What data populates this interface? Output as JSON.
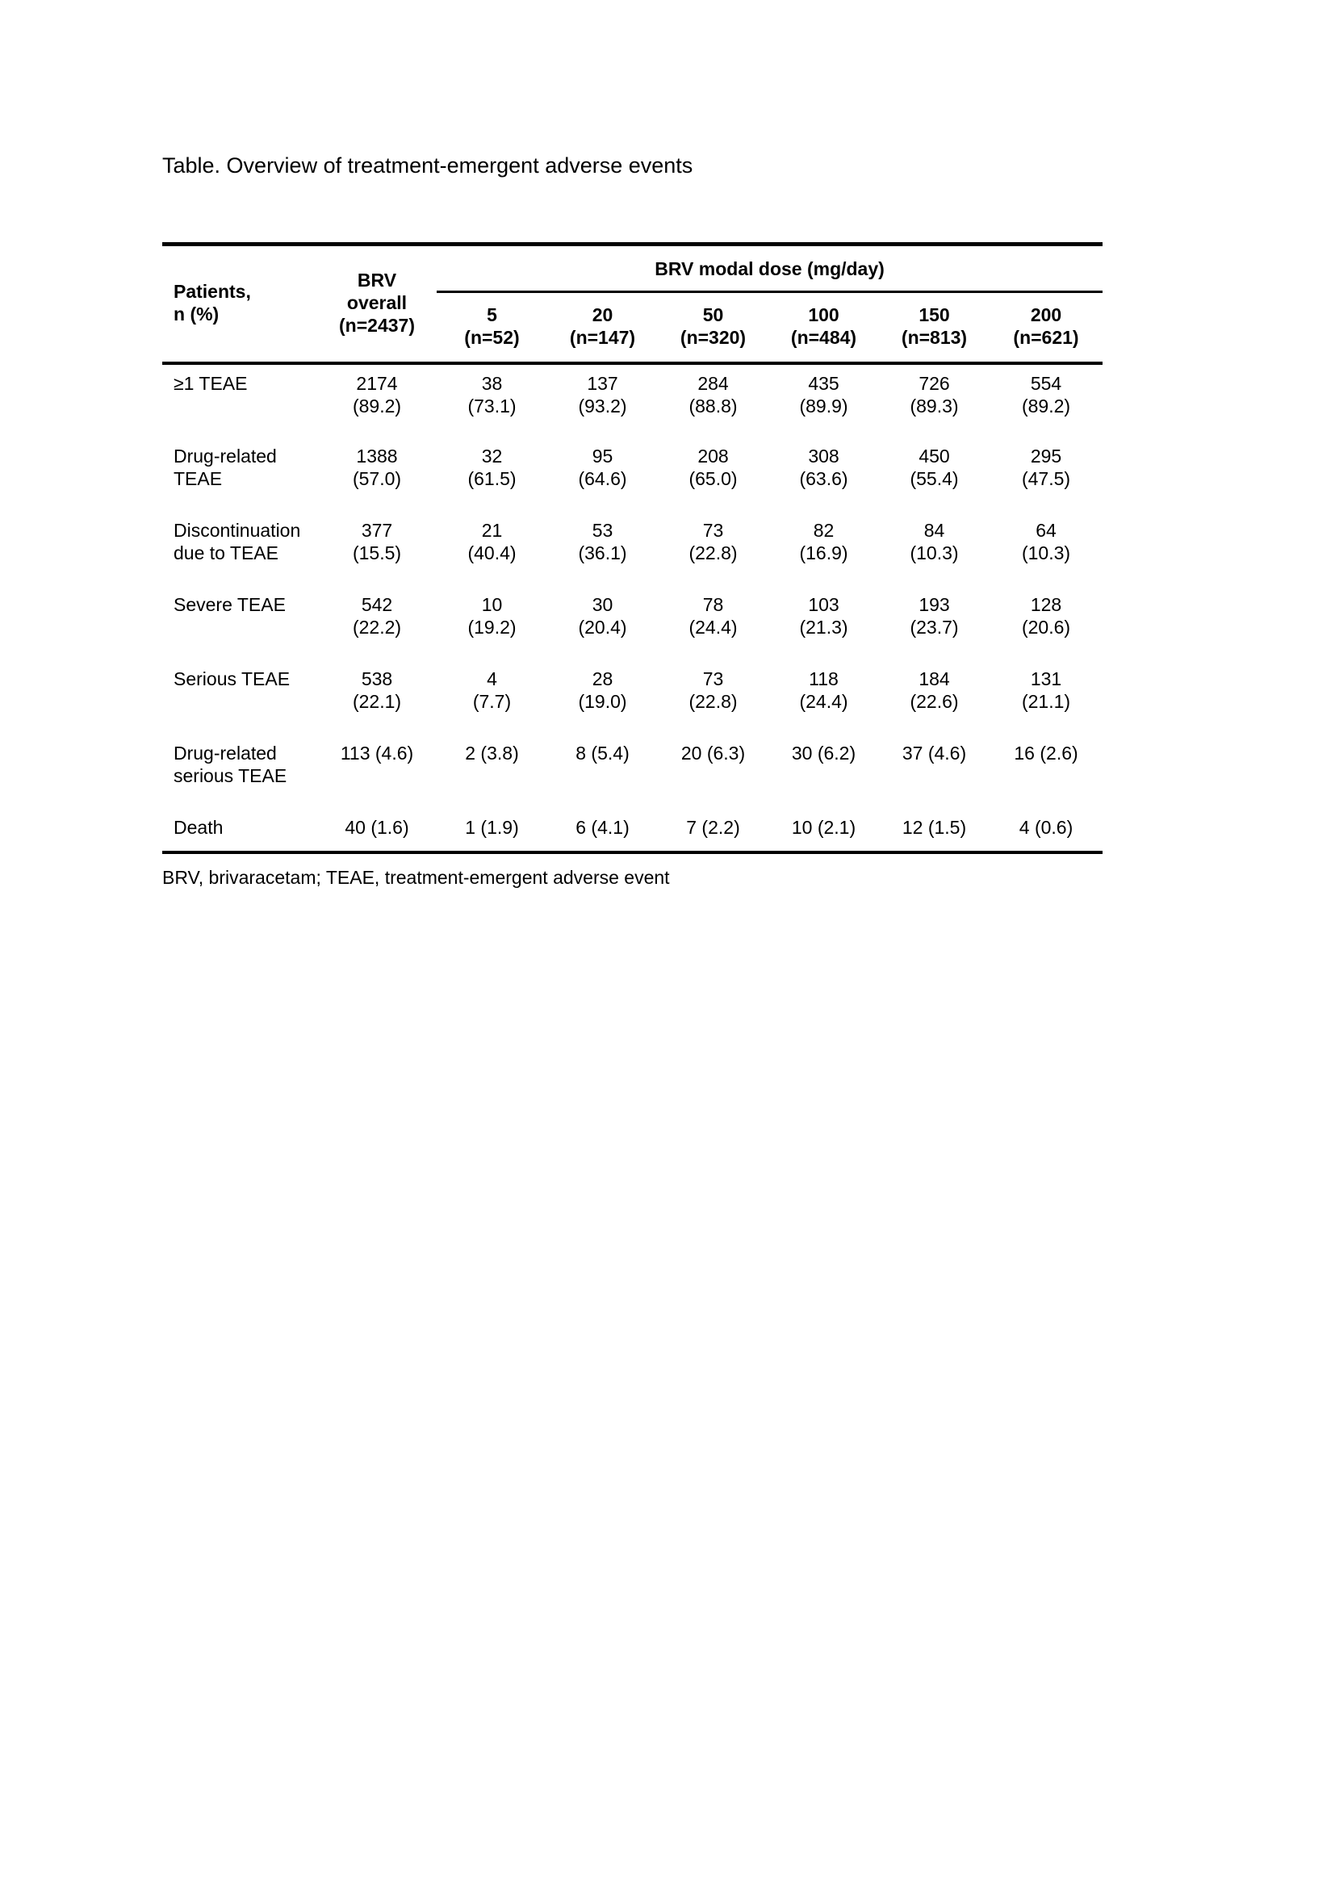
{
  "page": {
    "title": "Table. Overview of treatment-emergent adverse events",
    "footnote": "BRV, brivaracetam; TEAE, treatment-emergent adverse event"
  },
  "table": {
    "patients_header": [
      "Patients,",
      "n (%)"
    ],
    "overall_header": [
      "BRV",
      "overall",
      "(n=2437)"
    ],
    "dose_group_header": "BRV modal dose (mg/day)",
    "dose_columns": [
      {
        "dose": "5",
        "n": "(n=52)"
      },
      {
        "dose": "20",
        "n": "(n=147)"
      },
      {
        "dose": "50",
        "n": "(n=320)"
      },
      {
        "dose": "100",
        "n": "(n=484)"
      },
      {
        "dose": "150",
        "n": "(n=813)"
      },
      {
        "dose": "200",
        "n": "(n=621)"
      }
    ],
    "rows": [
      {
        "label": [
          "≥1 TEAE"
        ],
        "cells": [
          [
            "2174",
            "(89.2)"
          ],
          [
            "38",
            "(73.1)"
          ],
          [
            "137",
            "(93.2)"
          ],
          [
            "284",
            "(88.8)"
          ],
          [
            "435",
            "(89.9)"
          ],
          [
            "726",
            "(89.3)"
          ],
          [
            "554",
            "(89.2)"
          ]
        ]
      },
      {
        "label": [
          "Drug-related",
          "TEAE"
        ],
        "cells": [
          [
            "1388",
            "(57.0)"
          ],
          [
            "32",
            "(61.5)"
          ],
          [
            "95",
            "(64.6)"
          ],
          [
            "208",
            "(65.0)"
          ],
          [
            "308",
            "(63.6)"
          ],
          [
            "450",
            "(55.4)"
          ],
          [
            "295",
            "(47.5)"
          ]
        ]
      },
      {
        "label": [
          "Discontinuation",
          "due to TEAE"
        ],
        "cells": [
          [
            "377",
            "(15.5)"
          ],
          [
            "21",
            "(40.4)"
          ],
          [
            "53",
            "(36.1)"
          ],
          [
            "73",
            "(22.8)"
          ],
          [
            "82",
            "(16.9)"
          ],
          [
            "84",
            "(10.3)"
          ],
          [
            "64",
            "(10.3)"
          ]
        ]
      },
      {
        "label": [
          "Severe TEAE"
        ],
        "cells": [
          [
            "542",
            "(22.2)"
          ],
          [
            "10",
            "(19.2)"
          ],
          [
            "30",
            "(20.4)"
          ],
          [
            "78",
            "(24.4)"
          ],
          [
            "103",
            "(21.3)"
          ],
          [
            "193",
            "(23.7)"
          ],
          [
            "128",
            "(20.6)"
          ]
        ]
      },
      {
        "label": [
          "Serious TEAE"
        ],
        "cells": [
          [
            "538",
            "(22.1)"
          ],
          [
            "4",
            "(7.7)"
          ],
          [
            "28",
            "(19.0)"
          ],
          [
            "73",
            "(22.8)"
          ],
          [
            "118",
            "(24.4)"
          ],
          [
            "184",
            "(22.6)"
          ],
          [
            "131",
            "(21.1)"
          ]
        ]
      },
      {
        "label": [
          "Drug-related",
          "serious TEAE"
        ],
        "cells": [
          [
            "113 (4.6)"
          ],
          [
            "2 (3.8)"
          ],
          [
            "8 (5.4)"
          ],
          [
            "20 (6.3)"
          ],
          [
            "30 (6.2)"
          ],
          [
            "37 (4.6)"
          ],
          [
            "16 (2.6)"
          ]
        ]
      },
      {
        "label": [
          "Death"
        ],
        "cells": [
          [
            "40 (1.6)"
          ],
          [
            "1 (1.9)"
          ],
          [
            "6 (4.1)"
          ],
          [
            "7 (2.2)"
          ],
          [
            "10 (2.1)"
          ],
          [
            "12 (1.5)"
          ],
          [
            "4 (0.6)"
          ]
        ]
      }
    ]
  }
}
